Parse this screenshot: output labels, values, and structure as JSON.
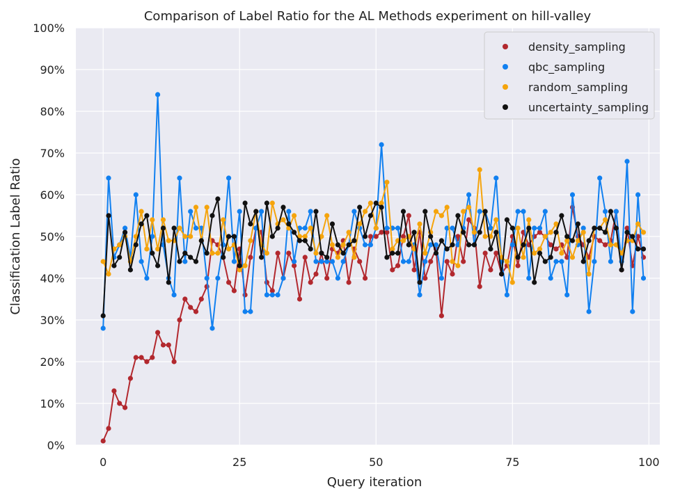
{
  "chart_data": {
    "type": "line",
    "title": "Comparison of Label Ratio for the AL Methods experiment on hill-valley",
    "xlabel": "Query iteration",
    "ylabel": "Classification Label Ratio",
    "xlim": [
      -5,
      102
    ],
    "ylim": [
      0,
      1
    ],
    "xticks": [
      0,
      25,
      50,
      75,
      100
    ],
    "yticks": [
      0,
      0.1,
      0.2,
      0.3,
      0.4,
      0.5,
      0.6,
      0.7,
      0.8,
      0.9,
      1.0
    ],
    "ytick_labels": [
      "0%",
      "10%",
      "20%",
      "30%",
      "40%",
      "50%",
      "60%",
      "70%",
      "80%",
      "90%",
      "100%"
    ],
    "grid": true,
    "legend_position": "top-right",
    "series": [
      {
        "name": "density_sampling",
        "color": "#b2282e",
        "values": [
          0.01,
          0.04,
          0.13,
          0.1,
          0.09,
          0.16,
          0.21,
          0.21,
          0.2,
          0.21,
          0.27,
          0.24,
          0.24,
          0.2,
          0.3,
          0.35,
          0.33,
          0.32,
          0.35,
          0.38,
          0.49,
          0.48,
          0.45,
          0.39,
          0.37,
          0.47,
          0.36,
          0.45,
          0.52,
          0.51,
          0.39,
          0.37,
          0.46,
          0.4,
          0.46,
          0.43,
          0.35,
          0.45,
          0.39,
          0.41,
          0.46,
          0.4,
          0.47,
          0.46,
          0.49,
          0.39,
          0.47,
          0.44,
          0.4,
          0.5,
          0.5,
          0.51,
          0.51,
          0.42,
          0.43,
          0.5,
          0.55,
          0.42,
          0.51,
          0.4,
          0.44,
          0.47,
          0.31,
          0.44,
          0.41,
          0.5,
          0.44,
          0.54,
          0.52,
          0.38,
          0.46,
          0.42,
          0.46,
          0.41,
          0.43,
          0.5,
          0.43,
          0.51,
          0.48,
          0.5,
          0.51,
          0.5,
          0.48,
          0.47,
          0.48,
          0.45,
          0.57,
          0.5,
          0.48,
          0.45,
          0.5,
          0.49,
          0.48,
          0.49,
          0.56,
          0.42,
          0.52,
          0.43,
          0.5,
          0.45
        ]
      },
      {
        "name": "qbc_sampling",
        "color": "#1180f0",
        "values": [
          0.28,
          0.64,
          0.45,
          0.48,
          0.52,
          0.45,
          0.6,
          0.44,
          0.4,
          0.5,
          0.84,
          0.48,
          0.4,
          0.36,
          0.64,
          0.44,
          0.56,
          0.52,
          0.52,
          0.4,
          0.28,
          0.4,
          0.48,
          0.64,
          0.44,
          0.56,
          0.32,
          0.32,
          0.52,
          0.56,
          0.36,
          0.36,
          0.36,
          0.4,
          0.56,
          0.44,
          0.52,
          0.52,
          0.56,
          0.44,
          0.44,
          0.44,
          0.44,
          0.4,
          0.44,
          0.48,
          0.56,
          0.52,
          0.48,
          0.48,
          0.52,
          0.72,
          0.52,
          0.52,
          0.52,
          0.44,
          0.44,
          0.48,
          0.36,
          0.44,
          0.48,
          0.48,
          0.4,
          0.52,
          0.52,
          0.48,
          0.52,
          0.6,
          0.48,
          0.56,
          0.56,
          0.52,
          0.64,
          0.44,
          0.36,
          0.48,
          0.56,
          0.56,
          0.4,
          0.52,
          0.52,
          0.56,
          0.4,
          0.44,
          0.44,
          0.36,
          0.6,
          0.48,
          0.52,
          0.32,
          0.44,
          0.64,
          0.56,
          0.44,
          0.56,
          0.44,
          0.68,
          0.32,
          0.6,
          0.4
        ]
      },
      {
        "name": "random_sampling",
        "color": "#f5a40c",
        "values": [
          0.44,
          0.41,
          0.47,
          0.48,
          0.5,
          0.44,
          0.5,
          0.56,
          0.47,
          0.54,
          0.47,
          0.54,
          0.49,
          0.49,
          0.52,
          0.5,
          0.5,
          0.57,
          0.49,
          0.57,
          0.46,
          0.46,
          0.54,
          0.47,
          0.48,
          0.42,
          0.43,
          0.49,
          0.56,
          0.48,
          0.46,
          0.58,
          0.53,
          0.54,
          0.52,
          0.55,
          0.5,
          0.5,
          0.52,
          0.46,
          0.5,
          0.55,
          0.48,
          0.45,
          0.48,
          0.51,
          0.45,
          0.53,
          0.56,
          0.58,
          0.52,
          0.58,
          0.63,
          0.47,
          0.49,
          0.49,
          0.5,
          0.47,
          0.53,
          0.46,
          0.51,
          0.56,
          0.55,
          0.57,
          0.44,
          0.43,
          0.56,
          0.57,
          0.51,
          0.66,
          0.5,
          0.5,
          0.54,
          0.45,
          0.44,
          0.39,
          0.52,
          0.45,
          0.54,
          0.46,
          0.47,
          0.5,
          0.51,
          0.53,
          0.46,
          0.49,
          0.45,
          0.49,
          0.51,
          0.41,
          0.52,
          0.52,
          0.54,
          0.48,
          0.48,
          0.46,
          0.49,
          0.49,
          0.53,
          0.51
        ]
      },
      {
        "name": "uncertainty_sampling",
        "color": "#111111",
        "values": [
          0.31,
          0.55,
          0.43,
          0.45,
          0.51,
          0.42,
          0.48,
          0.53,
          0.55,
          0.46,
          0.43,
          0.52,
          0.39,
          0.52,
          0.44,
          0.46,
          0.45,
          0.44,
          0.49,
          0.46,
          0.55,
          0.59,
          0.45,
          0.5,
          0.5,
          0.43,
          0.58,
          0.53,
          0.56,
          0.45,
          0.58,
          0.5,
          0.52,
          0.57,
          0.53,
          0.51,
          0.49,
          0.49,
          0.47,
          0.56,
          0.46,
          0.45,
          0.53,
          0.48,
          0.46,
          0.48,
          0.49,
          0.57,
          0.5,
          0.55,
          0.58,
          0.57,
          0.45,
          0.46,
          0.46,
          0.56,
          0.48,
          0.51,
          0.39,
          0.56,
          0.5,
          0.46,
          0.49,
          0.47,
          0.48,
          0.55,
          0.51,
          0.48,
          0.48,
          0.51,
          0.56,
          0.47,
          0.51,
          0.41,
          0.54,
          0.52,
          0.45,
          0.48,
          0.52,
          0.39,
          0.46,
          0.44,
          0.45,
          0.51,
          0.55,
          0.5,
          0.49,
          0.53,
          0.44,
          0.49,
          0.52,
          0.52,
          0.51,
          0.56,
          0.52,
          0.42,
          0.51,
          0.5,
          0.47,
          0.47
        ]
      }
    ]
  }
}
